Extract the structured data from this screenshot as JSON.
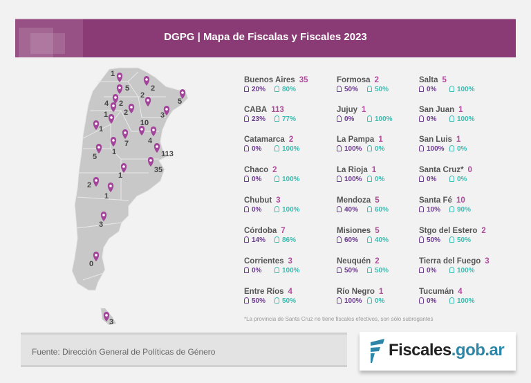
{
  "header": {
    "title": "DGPG | Mapa de Fiscalas y Fiscales 2023"
  },
  "colors": {
    "header": "#8a3a74",
    "female": "#6b3a8f",
    "male": "#3dbbb0",
    "count": "#b04a9c",
    "pin": "#a2449a"
  },
  "provinces": [
    {
      "name": "Buenos Aires",
      "count": "35",
      "female": "20%",
      "male": "80%"
    },
    {
      "name": "CABA",
      "count": "113",
      "female": "23%",
      "male": "77%"
    },
    {
      "name": "Catamarca",
      "count": "2",
      "female": "0%",
      "male": "100%"
    },
    {
      "name": "Chaco",
      "count": "2",
      "female": "0%",
      "male": "100%"
    },
    {
      "name": "Chubut",
      "count": "3",
      "female": "0%",
      "male": "100%"
    },
    {
      "name": "Córdoba",
      "count": "7",
      "female": "14%",
      "male": "86%"
    },
    {
      "name": "Corrientes",
      "count": "3",
      "female": "0%",
      "male": "100%"
    },
    {
      "name": "Entre Ríos",
      "count": "4",
      "female": "50%",
      "male": "50%"
    },
    {
      "name": "Formosa",
      "count": "2",
      "female": "50%",
      "male": "50%"
    },
    {
      "name": "Jujuy",
      "count": "1",
      "female": "0%",
      "male": "100%"
    },
    {
      "name": "La Pampa",
      "count": "1",
      "female": "100%",
      "male": "0%"
    },
    {
      "name": "La Rioja",
      "count": "1",
      "female": "100%",
      "male": "0%"
    },
    {
      "name": "Mendoza",
      "count": "5",
      "female": "40%",
      "male": "60%"
    },
    {
      "name": "Misiones",
      "count": "5",
      "female": "60%",
      "male": "40%"
    },
    {
      "name": "Neuquén",
      "count": "2",
      "female": "50%",
      "male": "50%"
    },
    {
      "name": "Río Negro",
      "count": "1",
      "female": "100%",
      "male": "0%"
    },
    {
      "name": "Salta",
      "count": "5",
      "female": "0%",
      "male": "100%"
    },
    {
      "name": "San Juan",
      "count": "1",
      "female": "0%",
      "male": "100%"
    },
    {
      "name": "San Luis",
      "count": "1",
      "female": "100%",
      "male": "0%"
    },
    {
      "name": "Santa Cruz*",
      "count": "0",
      "female": "0%",
      "male": "0%"
    },
    {
      "name": "Santa Fé",
      "count": "10",
      "female": "10%",
      "male": "90%"
    },
    {
      "name": "Stgo del Estero",
      "count": "2",
      "female": "50%",
      "male": "50%"
    },
    {
      "name": "Tierra del Fuego",
      "count": "3",
      "female": "0%",
      "male": "100%"
    },
    {
      "name": "Tucumán",
      "count": "4",
      "female": "0%",
      "male": "100%"
    }
  ],
  "map_labels": [
    "1",
    "5",
    "2",
    "2",
    "4",
    "2",
    "2",
    "3",
    "5",
    "1",
    "1",
    "10",
    "4",
    "7",
    "1",
    "5",
    "113",
    "35",
    "1",
    "2",
    "1",
    "3",
    "0",
    "3"
  ],
  "note": "*La provincia de Santa Cruz no tiene fiscales efectivos, son sólo subrogantes",
  "footer": {
    "source": "Fuente: Dirección General de Políticas de Género",
    "logo_text": "Fiscales",
    "logo_domain": ".gob.ar"
  }
}
